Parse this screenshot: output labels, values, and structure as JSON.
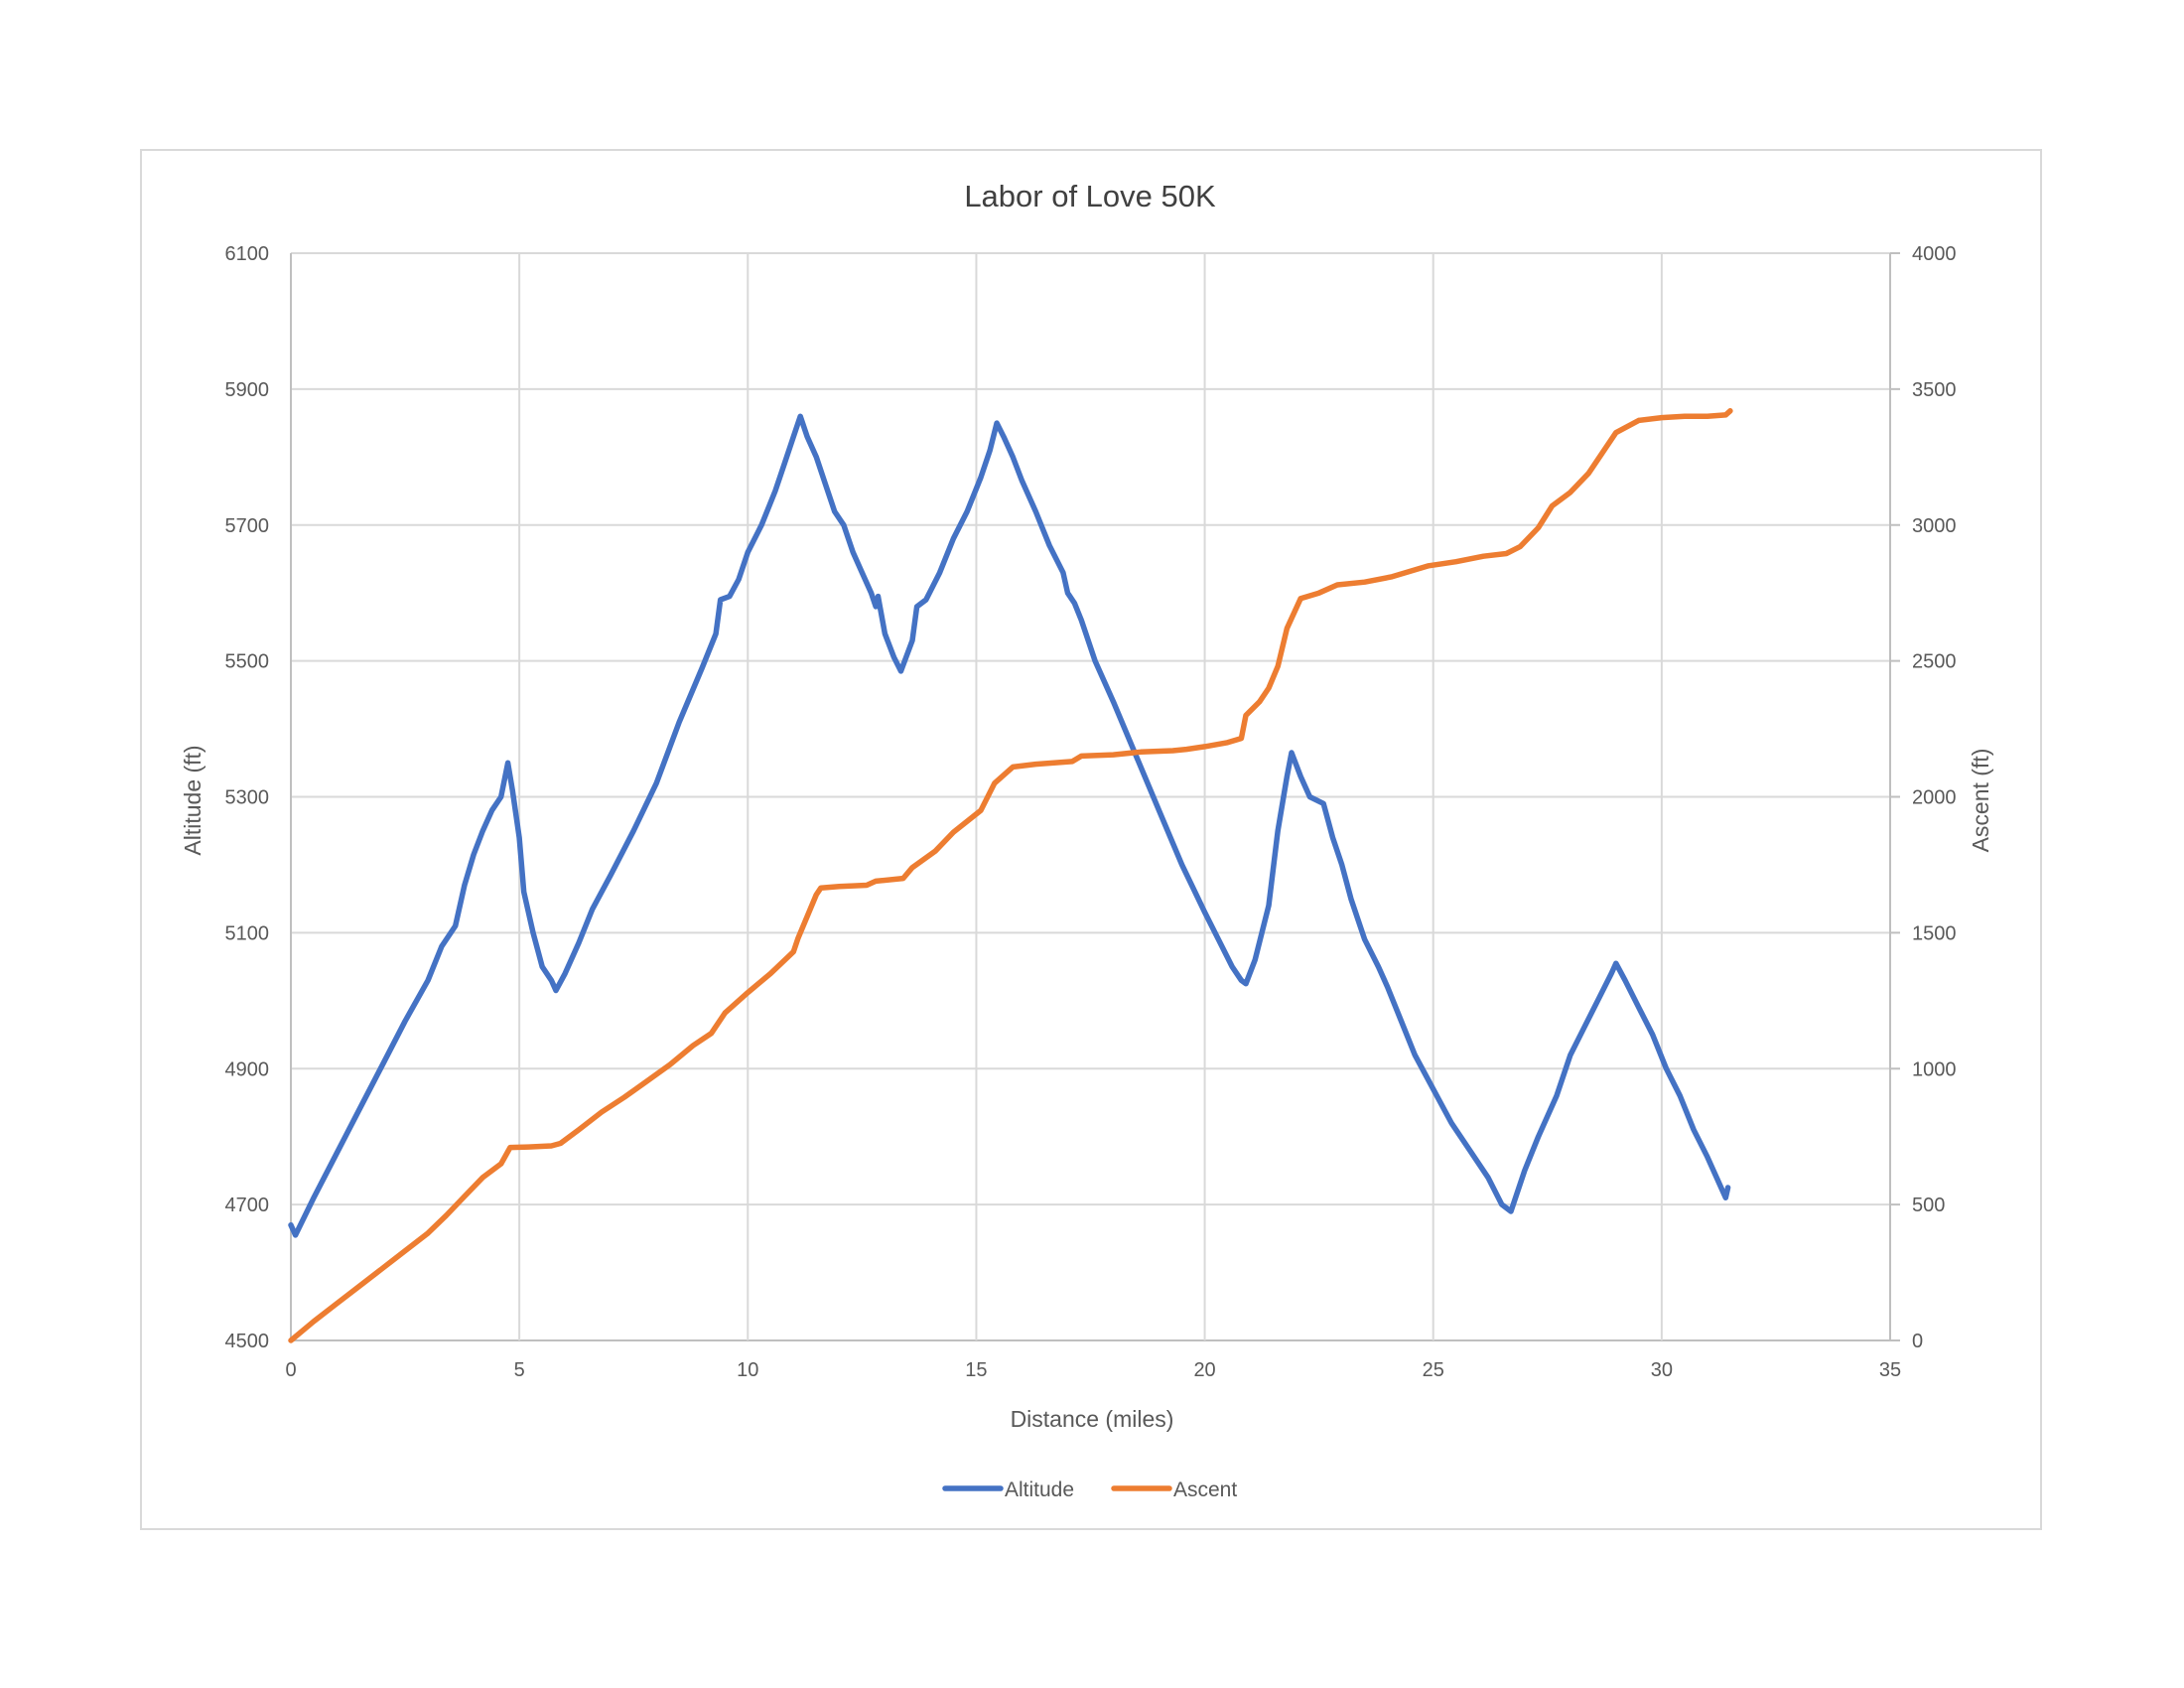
{
  "chart_data": {
    "type": "line",
    "title": "Labor of Love 50K",
    "xlabel": "Distance (miles)",
    "ylabel": "Altitude (ft)",
    "y2label": "Ascent (ft)",
    "xlim": [
      0,
      35
    ],
    "ylim": [
      4500,
      6100
    ],
    "y2lim": [
      0,
      4000
    ],
    "xticks": [
      0,
      5,
      10,
      15,
      20,
      25,
      30,
      35
    ],
    "yticks": [
      4500,
      4700,
      4900,
      5100,
      5300,
      5500,
      5700,
      5900,
      6100
    ],
    "y2ticks": [
      0,
      500,
      1000,
      1500,
      2000,
      2500,
      3000,
      3500,
      4000
    ],
    "grid": true,
    "legend": "bottom",
    "series": [
      {
        "name": "Altitude",
        "axis": "left",
        "color": "#4472C4",
        "points": [
          [
            0,
            4670
          ],
          [
            0.1,
            4655
          ],
          [
            0.5,
            4710
          ],
          [
            1,
            4775
          ],
          [
            1.5,
            4840
          ],
          [
            2,
            4905
          ],
          [
            2.5,
            4970
          ],
          [
            3,
            5030
          ],
          [
            3.3,
            5080
          ],
          [
            3.6,
            5110
          ],
          [
            3.8,
            5170
          ],
          [
            4,
            5215
          ],
          [
            4.2,
            5250
          ],
          [
            4.4,
            5280
          ],
          [
            4.6,
            5300
          ],
          [
            4.75,
            5350
          ],
          [
            4.85,
            5310
          ],
          [
            5,
            5240
          ],
          [
            5.1,
            5160
          ],
          [
            5.3,
            5100
          ],
          [
            5.5,
            5050
          ],
          [
            5.7,
            5030
          ],
          [
            5.8,
            5015
          ],
          [
            6,
            5040
          ],
          [
            6.3,
            5085
          ],
          [
            6.6,
            5135
          ],
          [
            7,
            5185
          ],
          [
            7.5,
            5250
          ],
          [
            8,
            5320
          ],
          [
            8.5,
            5410
          ],
          [
            9,
            5490
          ],
          [
            9.3,
            5540
          ],
          [
            9.4,
            5590
          ],
          [
            9.6,
            5595
          ],
          [
            9.8,
            5620
          ],
          [
            10,
            5660
          ],
          [
            10.3,
            5700
          ],
          [
            10.6,
            5750
          ],
          [
            10.8,
            5790
          ],
          [
            11,
            5830
          ],
          [
            11.15,
            5860
          ],
          [
            11.3,
            5830
          ],
          [
            11.5,
            5800
          ],
          [
            11.7,
            5760
          ],
          [
            11.9,
            5720
          ],
          [
            12.1,
            5700
          ],
          [
            12.3,
            5660
          ],
          [
            12.5,
            5630
          ],
          [
            12.7,
            5600
          ],
          [
            12.8,
            5580
          ],
          [
            12.85,
            5595
          ],
          [
            13,
            5540
          ],
          [
            13.2,
            5505
          ],
          [
            13.35,
            5485
          ],
          [
            13.6,
            5530
          ],
          [
            13.7,
            5580
          ],
          [
            13.9,
            5590
          ],
          [
            14.2,
            5630
          ],
          [
            14.5,
            5680
          ],
          [
            14.8,
            5720
          ],
          [
            15.1,
            5770
          ],
          [
            15.3,
            5810
          ],
          [
            15.45,
            5850
          ],
          [
            15.6,
            5830
          ],
          [
            15.8,
            5800
          ],
          [
            16,
            5765
          ],
          [
            16.3,
            5720
          ],
          [
            16.6,
            5670
          ],
          [
            16.9,
            5630
          ],
          [
            17,
            5600
          ],
          [
            17.15,
            5585
          ],
          [
            17.3,
            5560
          ],
          [
            17.6,
            5500
          ],
          [
            18,
            5440
          ],
          [
            18.5,
            5360
          ],
          [
            19,
            5280
          ],
          [
            19.5,
            5200
          ],
          [
            20,
            5130
          ],
          [
            20.3,
            5090
          ],
          [
            20.6,
            5050
          ],
          [
            20.8,
            5030
          ],
          [
            20.9,
            5025
          ],
          [
            21.1,
            5060
          ],
          [
            21.4,
            5140
          ],
          [
            21.6,
            5250
          ],
          [
            21.8,
            5330
          ],
          [
            21.9,
            5365
          ],
          [
            22.1,
            5330
          ],
          [
            22.3,
            5300
          ],
          [
            22.6,
            5290
          ],
          [
            22.8,
            5240
          ],
          [
            23,
            5200
          ],
          [
            23.2,
            5150
          ],
          [
            23.5,
            5090
          ],
          [
            23.8,
            5050
          ],
          [
            24,
            5020
          ],
          [
            24.3,
            4970
          ],
          [
            24.6,
            4920
          ],
          [
            25,
            4870
          ],
          [
            25.4,
            4820
          ],
          [
            25.8,
            4780
          ],
          [
            26.2,
            4740
          ],
          [
            26.5,
            4700
          ],
          [
            26.7,
            4690
          ],
          [
            27,
            4750
          ],
          [
            27.3,
            4800
          ],
          [
            27.7,
            4860
          ],
          [
            28,
            4920
          ],
          [
            28.3,
            4960
          ],
          [
            28.6,
            5000
          ],
          [
            28.9,
            5040
          ],
          [
            29,
            5055
          ],
          [
            29.2,
            5030
          ],
          [
            29.5,
            4990
          ],
          [
            29.8,
            4950
          ],
          [
            30.1,
            4900
          ],
          [
            30.4,
            4860
          ],
          [
            30.7,
            4810
          ],
          [
            31,
            4770
          ],
          [
            31.2,
            4740
          ],
          [
            31.4,
            4710
          ],
          [
            31.45,
            4725
          ]
        ]
      },
      {
        "name": "Ascent",
        "axis": "right",
        "color": "#ED7D31",
        "points": [
          [
            0,
            0
          ],
          [
            0.5,
            70
          ],
          [
            1,
            135
          ],
          [
            1.5,
            200
          ],
          [
            2,
            265
          ],
          [
            2.5,
            330
          ],
          [
            3,
            395
          ],
          [
            3.4,
            460
          ],
          [
            3.8,
            530
          ],
          [
            4.2,
            600
          ],
          [
            4.6,
            650
          ],
          [
            4.8,
            710
          ],
          [
            5.2,
            712
          ],
          [
            5.7,
            716
          ],
          [
            5.9,
            725
          ],
          [
            6.3,
            775
          ],
          [
            6.8,
            840
          ],
          [
            7.3,
            895
          ],
          [
            7.8,
            955
          ],
          [
            8.3,
            1015
          ],
          [
            8.8,
            1085
          ],
          [
            9.2,
            1130
          ],
          [
            9.5,
            1205
          ],
          [
            10,
            1280
          ],
          [
            10.5,
            1350
          ],
          [
            11,
            1430
          ],
          [
            11.1,
            1480
          ],
          [
            11.5,
            1640
          ],
          [
            11.6,
            1665
          ],
          [
            12,
            1670
          ],
          [
            12.6,
            1675
          ],
          [
            12.8,
            1690
          ],
          [
            13.4,
            1700
          ],
          [
            13.6,
            1740
          ],
          [
            14.1,
            1800
          ],
          [
            14.5,
            1870
          ],
          [
            15.1,
            1950
          ],
          [
            15.4,
            2050
          ],
          [
            15.8,
            2110
          ],
          [
            16.3,
            2120
          ],
          [
            17.1,
            2130
          ],
          [
            17.3,
            2150
          ],
          [
            18,
            2155
          ],
          [
            18.6,
            2165
          ],
          [
            19.3,
            2170
          ],
          [
            19.6,
            2175
          ],
          [
            20,
            2185
          ],
          [
            20.5,
            2200
          ],
          [
            20.8,
            2215
          ],
          [
            20.9,
            2300
          ],
          [
            21.2,
            2350
          ],
          [
            21.4,
            2400
          ],
          [
            21.6,
            2480
          ],
          [
            21.8,
            2620
          ],
          [
            22.1,
            2730
          ],
          [
            22.5,
            2750
          ],
          [
            22.9,
            2780
          ],
          [
            23.5,
            2790
          ],
          [
            24.1,
            2810
          ],
          [
            24.5,
            2830
          ],
          [
            24.9,
            2850
          ],
          [
            25.5,
            2865
          ],
          [
            26.1,
            2885
          ],
          [
            26.6,
            2895
          ],
          [
            26.9,
            2920
          ],
          [
            27.3,
            2990
          ],
          [
            27.6,
            3070
          ],
          [
            28,
            3120
          ],
          [
            28.4,
            3190
          ],
          [
            28.7,
            3265
          ],
          [
            29,
            3340
          ],
          [
            29.5,
            3385
          ],
          [
            30,
            3395
          ],
          [
            30.5,
            3400
          ],
          [
            31,
            3400
          ],
          [
            31.4,
            3405
          ],
          [
            31.5,
            3420
          ]
        ]
      }
    ]
  }
}
